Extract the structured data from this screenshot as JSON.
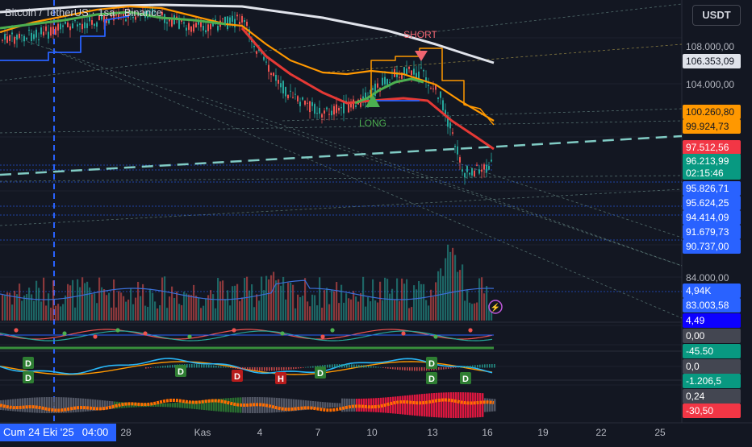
{
  "header": {
    "title": "Bitcoin / TetherUS · 1sa · Binance",
    "currency": "USDT"
  },
  "colors": {
    "bg": "#131722",
    "up": "#26a69a",
    "down": "#ef5350",
    "white_ma": "#e0e3eb",
    "orange": "#ff9800",
    "red_ma": "#e53935",
    "green_ma": "#4caf50",
    "blue": "#2962ff",
    "teal": "#80cbc4"
  },
  "chart_data": {
    "type": "candlestick",
    "price_axis": {
      "ticks": [
        "108.000,00",
        "104.000,00",
        "84.000,00"
      ]
    },
    "time_axis": {
      "ticks": [
        "28",
        "Kas",
        "4",
        "7",
        "10",
        "13",
        "16",
        "19",
        "22",
        "25"
      ]
    },
    "crosshair_date": {
      "date": "Cum 24 Eki '25",
      "time": "04:00"
    },
    "price_labels": [
      {
        "value": "106.353,09",
        "style": "white"
      },
      {
        "value": "100.260,80",
        "style": "orange"
      },
      {
        "value": "99.924,73",
        "style": "orange"
      },
      {
        "value": "97.512,56",
        "style": "red"
      },
      {
        "value": "96.213,99",
        "style": "teal",
        "sub": "02:15:46"
      },
      {
        "value": "95.826,71",
        "style": "blue"
      },
      {
        "value": "95.624,25",
        "style": "blue"
      },
      {
        "value": "94.414,09",
        "style": "blue"
      },
      {
        "value": "91.679,73",
        "style": "blue"
      },
      {
        "value": "90.737,00",
        "style": "blue"
      },
      {
        "value": "4,94K",
        "style": "blue"
      },
      {
        "value": "83.003,58",
        "style": "blue"
      },
      {
        "value": "4,49",
        "style": "navy"
      },
      {
        "value": "0,00",
        "style": "dark"
      },
      {
        "value": "-45.50",
        "style": "green"
      },
      {
        "value": "0,0",
        "style": "dark"
      },
      {
        "value": "-1.206,5",
        "style": "green"
      },
      {
        "value": "0,24",
        "style": "dark"
      },
      {
        "value": "-30,50",
        "style": "red"
      }
    ],
    "signals": [
      {
        "label": "SHORT",
        "direction": "down"
      },
      {
        "label": "LONG",
        "direction": "up"
      }
    ],
    "markers": [
      "D",
      "D",
      "D",
      "D",
      "H",
      "D",
      "D",
      "D",
      "D"
    ]
  }
}
